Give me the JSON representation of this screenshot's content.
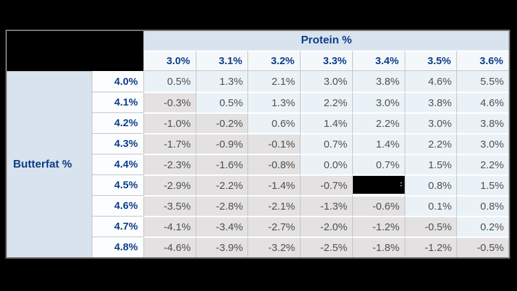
{
  "page": {
    "background_color": "#000000",
    "table_border_color": "#757575",
    "gridline_color": "#c4c4c4",
    "header_text_color": "#0e3d87",
    "data_text_color": "#4f4f4f"
  },
  "redactions": {
    "corner_box": "black box covering top-left corner cell of table",
    "cell_box": {
      "row": "4.5%",
      "column": "3.4%"
    },
    "cell_artifact": ":"
  },
  "chart_data": {
    "type": "table",
    "col_axis": "Protein %",
    "row_axis": "Butterfat %",
    "columns": [
      "3.0%",
      "3.1%",
      "3.2%",
      "3.3%",
      "3.4%",
      "3.5%",
      "3.6%"
    ],
    "rows": [
      "4.0%",
      "4.1%",
      "4.2%",
      "4.3%",
      "4.4%",
      "4.5%",
      "4.6%",
      "4.7%",
      "4.8%"
    ],
    "cells": [
      [
        "0.5%",
        "1.3%",
        "2.1%",
        "3.0%",
        "3.8%",
        "4.6%",
        "5.5%"
      ],
      [
        "-0.3%",
        "0.5%",
        "1.3%",
        "2.2%",
        "3.0%",
        "3.8%",
        "4.6%"
      ],
      [
        "-1.0%",
        "-0.2%",
        "0.6%",
        "1.4%",
        "2.2%",
        "3.0%",
        "3.8%"
      ],
      [
        "-1.7%",
        "-0.9%",
        "-0.1%",
        "0.7%",
        "1.4%",
        "2.2%",
        "3.0%"
      ],
      [
        "-2.3%",
        "-1.6%",
        "-0.8%",
        "0.0%",
        "0.7%",
        "1.5%",
        "2.2%"
      ],
      [
        "-2.9%",
        "-2.2%",
        "-1.4%",
        "-0.7%",
        null,
        "0.8%",
        "1.5%"
      ],
      [
        "-3.5%",
        "-2.8%",
        "-2.1%",
        "-1.3%",
        "-0.6%",
        "0.1%",
        "0.8%"
      ],
      [
        "-4.1%",
        "-3.4%",
        "-2.7%",
        "-2.0%",
        "-1.2%",
        "-0.5%",
        "0.2%"
      ],
      [
        "-4.6%",
        "-3.9%",
        "-3.2%",
        "-2.5%",
        "-1.8%",
        "-1.2%",
        "-0.5%"
      ]
    ],
    "cell_colors": {
      "non_negative": "#ebf2f7",
      "negative": "#e3e1e1"
    },
    "layout": {
      "header_bg": "#d8e3ee",
      "col_header_bg": "#f5f8fb",
      "row_header_bg": "#fbfdfe",
      "legend_position": "none",
      "grid": true
    }
  }
}
